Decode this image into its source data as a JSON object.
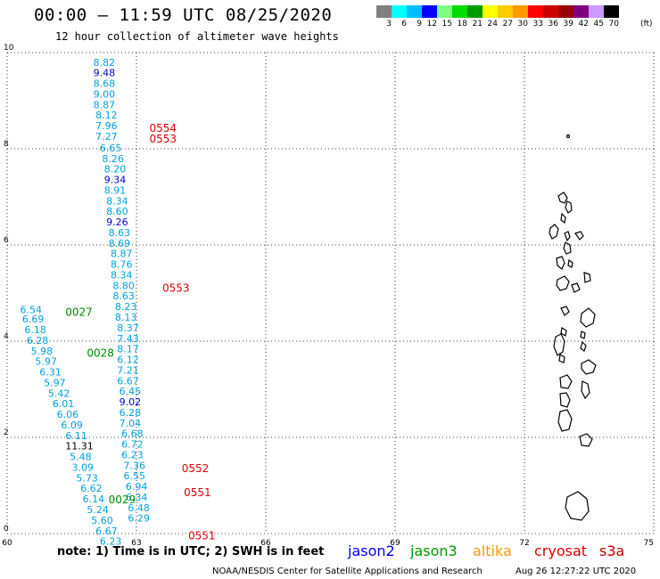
{
  "header": {
    "title": "00:00 – 11:59 UTC 08/25/2020",
    "subtitle": "12 hour collection of altimeter wave heights"
  },
  "colorbar": {
    "unit": "(ft)",
    "bins": [
      {
        "label": "3",
        "color": "#808080"
      },
      {
        "label": "6",
        "color": "#00ffff"
      },
      {
        "label": "9",
        "color": "#00bfff"
      },
      {
        "label": "12",
        "color": "#0000ff"
      },
      {
        "label": "15",
        "color": "#7fff7f"
      },
      {
        "label": "18",
        "color": "#00dd00"
      },
      {
        "label": "21",
        "color": "#009900"
      },
      {
        "label": "24",
        "color": "#ffff00"
      },
      {
        "label": "27",
        "color": "#ffcc00"
      },
      {
        "label": "30",
        "color": "#ff9900"
      },
      {
        "label": "33",
        "color": "#ff0000"
      },
      {
        "label": "36",
        "color": "#cc0000"
      },
      {
        "label": "39",
        "color": "#990000"
      },
      {
        "label": "42",
        "color": "#7f007f"
      },
      {
        "label": "45",
        "color": "#cc99ff"
      },
      {
        "label": "70",
        "color": "#000000"
      }
    ]
  },
  "axes": {
    "x_ticks": [
      "60",
      "63",
      "66",
      "69",
      "72",
      "75"
    ],
    "y_ticks": [
      "0",
      "2",
      "4",
      "6",
      "8",
      "10"
    ]
  },
  "observations": [
    {
      "v": "8.82",
      "lon": 62.0,
      "lat": 9.8,
      "color": "#00a0e0"
    },
    {
      "v": "9.48",
      "lon": 62.0,
      "lat": 9.58,
      "color": "#0000cc"
    },
    {
      "v": "8.68",
      "lon": 62.0,
      "lat": 9.36,
      "color": "#00a0e0"
    },
    {
      "v": "9.00",
      "lon": 62.0,
      "lat": 9.14,
      "color": "#00a0e0"
    },
    {
      "v": "8.87",
      "lon": 62.0,
      "lat": 8.92,
      "color": "#00a0e0"
    },
    {
      "v": "8.12",
      "lon": 62.05,
      "lat": 8.7,
      "color": "#00a0e0"
    },
    {
      "v": "7.96",
      "lon": 62.05,
      "lat": 8.48,
      "color": "#00a0e0"
    },
    {
      "v": "7.27",
      "lon": 62.05,
      "lat": 8.26,
      "color": "#00a0e0"
    },
    {
      "v": "6.65",
      "lon": 62.15,
      "lat": 8.02,
      "color": "#00a0e0"
    },
    {
      "v": "8.26",
      "lon": 62.2,
      "lat": 7.8,
      "color": "#00a0e0"
    },
    {
      "v": "8.20",
      "lon": 62.25,
      "lat": 7.58,
      "color": "#00a0e0"
    },
    {
      "v": "9.34",
      "lon": 62.25,
      "lat": 7.36,
      "color": "#0000cc"
    },
    {
      "v": "8.91",
      "lon": 62.25,
      "lat": 7.14,
      "color": "#00a0e0"
    },
    {
      "v": "8.34",
      "lon": 62.3,
      "lat": 6.92,
      "color": "#00a0e0"
    },
    {
      "v": "8.60",
      "lon": 62.3,
      "lat": 6.7,
      "color": "#00a0e0"
    },
    {
      "v": "9.26",
      "lon": 62.3,
      "lat": 6.48,
      "color": "#0000cc"
    },
    {
      "v": "8.63",
      "lon": 62.35,
      "lat": 6.26,
      "color": "#00a0e0"
    },
    {
      "v": "8.69",
      "lon": 62.35,
      "lat": 6.04,
      "color": "#00a0e0"
    },
    {
      "v": "8.87",
      "lon": 62.4,
      "lat": 5.82,
      "color": "#00a0e0"
    },
    {
      "v": "8.76",
      "lon": 62.4,
      "lat": 5.6,
      "color": "#00a0e0"
    },
    {
      "v": "8.34",
      "lon": 62.4,
      "lat": 5.38,
      "color": "#00a0e0"
    },
    {
      "v": "8.80",
      "lon": 62.45,
      "lat": 5.16,
      "color": "#00a0e0"
    },
    {
      "v": "8.63",
      "lon": 62.45,
      "lat": 4.94,
      "color": "#00a0e0"
    },
    {
      "v": "8.23",
      "lon": 62.5,
      "lat": 4.72,
      "color": "#00a0e0"
    },
    {
      "v": "8.13",
      "lon": 62.5,
      "lat": 4.5,
      "color": "#00a0e0"
    },
    {
      "v": "8.37",
      "lon": 62.55,
      "lat": 4.28,
      "color": "#00a0e0"
    },
    {
      "v": "7.43",
      "lon": 62.55,
      "lat": 4.06,
      "color": "#00a0e0"
    },
    {
      "v": "8.17",
      "lon": 62.55,
      "lat": 3.84,
      "color": "#00a0e0"
    },
    {
      "v": "6.12",
      "lon": 62.55,
      "lat": 3.62,
      "color": "#00a0e0"
    },
    {
      "v": "7.21",
      "lon": 62.55,
      "lat": 3.4,
      "color": "#00a0e0"
    },
    {
      "v": "6.67",
      "lon": 62.55,
      "lat": 3.18,
      "color": "#00a0e0"
    },
    {
      "v": "6.45",
      "lon": 62.6,
      "lat": 2.96,
      "color": "#00a0e0"
    },
    {
      "v": "9.02",
      "lon": 62.6,
      "lat": 2.74,
      "color": "#0000cc"
    },
    {
      "v": "6.28",
      "lon": 62.6,
      "lat": 2.52,
      "color": "#00a0e0"
    },
    {
      "v": "7.04",
      "lon": 62.6,
      "lat": 2.3,
      "color": "#00a0e0"
    },
    {
      "v": "6.68",
      "lon": 62.65,
      "lat": 2.08,
      "color": "#00a0e0"
    },
    {
      "v": "6.72",
      "lon": 62.65,
      "lat": 1.86,
      "color": "#00a0e0"
    },
    {
      "v": "6.23",
      "lon": 62.65,
      "lat": 1.64,
      "color": "#00a0e0"
    },
    {
      "v": "7.36",
      "lon": 62.7,
      "lat": 1.42,
      "color": "#00a0e0"
    },
    {
      "v": "6.55",
      "lon": 62.7,
      "lat": 1.2,
      "color": "#00a0e0"
    },
    {
      "v": "6.94",
      "lon": 62.75,
      "lat": 0.98,
      "color": "#00a0e0"
    },
    {
      "v": "6.34",
      "lon": 62.75,
      "lat": 0.76,
      "color": "#00a0e0"
    },
    {
      "v": "6.48",
      "lon": 62.8,
      "lat": 0.54,
      "color": "#00a0e0"
    },
    {
      "v": "6.29",
      "lon": 62.8,
      "lat": 0.32,
      "color": "#00a0e0"
    },
    {
      "v": "6.54",
      "lon": 60.3,
      "lat": 4.66,
      "color": "#00a0e0"
    },
    {
      "v": "6.69",
      "lon": 60.35,
      "lat": 4.46,
      "color": "#00a0e0"
    },
    {
      "v": "6.18",
      "lon": 60.4,
      "lat": 4.24,
      "color": "#00a0e0"
    },
    {
      "v": "6.28",
      "lon": 60.45,
      "lat": 4.02,
      "color": "#00a0e0"
    },
    {
      "v": "5.98",
      "lon": 60.55,
      "lat": 3.8,
      "color": "#00a0e0"
    },
    {
      "v": "5.97",
      "lon": 60.65,
      "lat": 3.58,
      "color": "#00a0e0"
    },
    {
      "v": "6.31",
      "lon": 60.75,
      "lat": 3.36,
      "color": "#00a0e0"
    },
    {
      "v": "5.97",
      "lon": 60.85,
      "lat": 3.14,
      "color": "#00a0e0"
    },
    {
      "v": "5.42",
      "lon": 60.95,
      "lat": 2.92,
      "color": "#00a0e0"
    },
    {
      "v": "6.01",
      "lon": 61.05,
      "lat": 2.7,
      "color": "#00a0e0"
    },
    {
      "v": "6.06",
      "lon": 61.15,
      "lat": 2.48,
      "color": "#00a0e0"
    },
    {
      "v": "6.09",
      "lon": 61.25,
      "lat": 2.26,
      "color": "#00a0e0"
    },
    {
      "v": "6.11",
      "lon": 61.35,
      "lat": 2.04,
      "color": "#00a0e0"
    },
    {
      "v": "11.31",
      "lon": 61.35,
      "lat": 1.82,
      "color": "#000000"
    },
    {
      "v": "5.48",
      "lon": 61.45,
      "lat": 1.6,
      "color": "#00a0e0"
    },
    {
      "v": "3.09",
      "lon": 61.5,
      "lat": 1.38,
      "color": "#00a0e0"
    },
    {
      "v": "5.73",
      "lon": 61.6,
      "lat": 1.16,
      "color": "#00a0e0"
    },
    {
      "v": "6.62",
      "lon": 61.7,
      "lat": 0.94,
      "color": "#00a0e0"
    },
    {
      "v": "6.14",
      "lon": 61.75,
      "lat": 0.72,
      "color": "#00a0e0"
    },
    {
      "v": "5.24",
      "lon": 61.85,
      "lat": 0.5,
      "color": "#00a0e0"
    },
    {
      "v": "5.60",
      "lon": 61.95,
      "lat": 0.28,
      "color": "#00a0e0"
    },
    {
      "v": "6.67",
      "lon": 62.05,
      "lat": 0.06,
      "color": "#00a0e0"
    },
    {
      "v": "6.23",
      "lon": 62.15,
      "lat": -0.16,
      "color": "#00a0e0"
    }
  ],
  "pass_labels": [
    {
      "text": "0554",
      "lon": 63.3,
      "lat": 8.43,
      "color": "#dd0000"
    },
    {
      "text": "0553",
      "lon": 63.3,
      "lat": 8.2,
      "color": "#dd0000"
    },
    {
      "text": "0553",
      "lon": 63.6,
      "lat": 5.1,
      "color": "#dd0000"
    },
    {
      "text": "0027",
      "lon": 61.35,
      "lat": 4.6,
      "color": "#008800"
    },
    {
      "text": "0028",
      "lon": 61.85,
      "lat": 3.75,
      "color": "#008800"
    },
    {
      "text": "0552",
      "lon": 64.05,
      "lat": 1.35,
      "color": "#dd0000"
    },
    {
      "text": "0551",
      "lon": 64.1,
      "lat": 0.85,
      "color": "#dd0000"
    },
    {
      "text": "0029",
      "lon": 62.35,
      "lat": 0.7,
      "color": "#008800"
    },
    {
      "text": "0551",
      "lon": 64.2,
      "lat": -0.05,
      "color": "#dd0000"
    }
  ],
  "footer": {
    "note": "note: 1) Time is in UTC; 2) SWH is in feet",
    "legend": [
      {
        "name": "jason2",
        "color": "#0000ee"
      },
      {
        "name": "jason3",
        "color": "#009900"
      },
      {
        "name": "altika",
        "color": "#ff9900"
      },
      {
        "name": "cryosat",
        "color": "#dd0000"
      },
      {
        "name": "s3a",
        "color": "#bb0000"
      }
    ],
    "credit": "NOAA/NESDIS Center for Satellite Applications and Research",
    "stamp": "Aug 26 12:27:22 UTC 2020"
  }
}
